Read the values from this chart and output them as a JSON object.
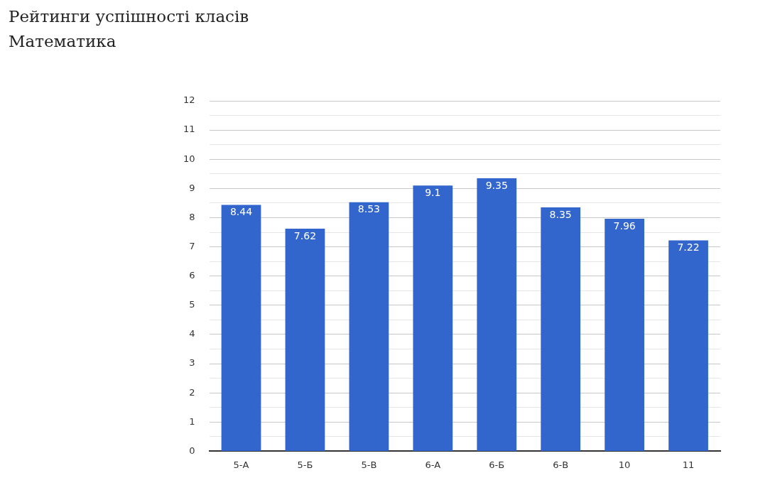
{
  "chart_data": {
    "type": "bar",
    "title": "Рейтинги успішності класів",
    "subtitle": "Математика",
    "categories": [
      "5-А",
      "5-Б",
      "5-В",
      "6-А",
      "6-Б",
      "6-В",
      "10",
      "11"
    ],
    "values": [
      8.44,
      7.62,
      8.53,
      9.1,
      9.35,
      8.35,
      7.96,
      7.22
    ],
    "color": "#3366cc",
    "data_labels": true,
    "grid": "y",
    "legend": false,
    "ylim": [
      0,
      12
    ],
    "yticks": [
      0,
      {
        "value": 0.5,
        "label": null
      },
      1,
      {
        "value": 1.5,
        "label": null
      },
      2,
      {
        "value": 2.5,
        "label": null
      },
      3,
      {
        "value": 3.5,
        "label": null
      },
      4,
      {
        "value": 4.5,
        "label": null
      },
      5,
      {
        "value": 5.5,
        "label": null
      },
      6,
      {
        "value": 6.5,
        "label": null
      },
      7,
      {
        "value": 7.5,
        "label": null
      },
      8,
      {
        "value": 8.5,
        "label": null
      },
      9,
      {
        "value": 9.5,
        "label": null
      },
      10,
      {
        "value": 10.5,
        "label": null
      },
      11,
      {
        "value": 11.5,
        "label": null
      },
      12
    ]
  }
}
